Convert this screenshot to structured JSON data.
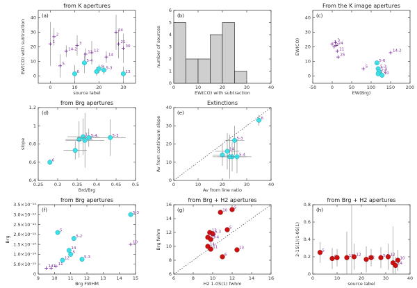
{
  "chart_data": [
    {
      "id": "a",
      "type": "scatter",
      "title": "from K apertures",
      "panel_label": "(a)",
      "xlabel": "source label",
      "ylabel": "EW(CO) with subtraction",
      "xlim": [
        -5,
        35
      ],
      "ylim": [
        -5,
        45
      ],
      "xticks": [
        0,
        10,
        20,
        30
      ],
      "yticks": [
        0,
        10,
        20,
        30,
        40
      ],
      "marker": "cross-purple",
      "points": [
        {
          "x": 0,
          "y": 22,
          "ex": 0.5,
          "ey": 15,
          "label": "1"
        },
        {
          "x": 1.5,
          "y": 27,
          "ex": 0.5,
          "ey": 6,
          "label": "2"
        },
        {
          "x": 6.5,
          "y": 17,
          "ex": 0.5,
          "ey": 4,
          "label": "14-2"
        },
        {
          "x": 11,
          "y": 21,
          "ex": 0.5,
          "ey": 7,
          "label": "3"
        },
        {
          "x": 14.5,
          "y": 15,
          "ex": 0.5,
          "ey": 4,
          "label": "11"
        },
        {
          "x": 17,
          "y": 16,
          "ex": 0.5,
          "ey": 8,
          "label": "12"
        },
        {
          "x": 4,
          "y": 7,
          "ex": 0.5,
          "ey": 8,
          "label": "5"
        },
        {
          "x": 10,
          "y": 1.5,
          "ex": 0.5,
          "ey": 6,
          "label": "6"
        },
        {
          "x": 14,
          "y": 9,
          "ex": 0.5,
          "ey": 7,
          "label": "5-4"
        },
        {
          "x": 19,
          "y": 3,
          "ex": 0.5,
          "ey": 3,
          "label": "8"
        },
        {
          "x": 20,
          "y": 5,
          "ex": 0.5,
          "ey": 3,
          "label": "9"
        },
        {
          "x": 22,
          "y": 4,
          "ex": 0.5,
          "ey": 3,
          "label": "5-3"
        },
        {
          "x": 27,
          "y": 30,
          "ex": 0.5,
          "ey": 12,
          "label": "24"
        },
        {
          "x": 28,
          "y": 22,
          "ex": 0.5,
          "ey": 10,
          "label": "21"
        },
        {
          "x": 30,
          "y": 19,
          "ex": 0.5,
          "ey": 10,
          "label": "30"
        },
        {
          "x": 23,
          "y": 13,
          "ex": 0.5,
          "ey": 4,
          "label": "14"
        },
        {
          "x": 30,
          "y": 1.5,
          "ex": 0.5,
          "ey": 5,
          "label": "13"
        }
      ],
      "highlighted": [
        {
          "x": 10,
          "y": 1.5
        },
        {
          "x": 14,
          "y": 9
        },
        {
          "x": 19,
          "y": 3
        },
        {
          "x": 20,
          "y": 5
        },
        {
          "x": 22,
          "y": 4
        },
        {
          "x": 30,
          "y": 1.5
        }
      ]
    },
    {
      "id": "b",
      "type": "bar",
      "title": "",
      "panel_label": "(b)",
      "xlabel": "EW(CO) with subtraction",
      "ylabel": "number of sources",
      "xlim": [
        0,
        40
      ],
      "ylim": [
        0,
        6
      ],
      "xticks": [
        0,
        10,
        20,
        30,
        40
      ],
      "yticks": [
        0,
        1,
        2,
        3,
        4,
        5,
        6
      ],
      "bin_edges": [
        0,
        5,
        10,
        15,
        20,
        25,
        30,
        35
      ],
      "values": [
        5,
        2,
        2,
        4,
        5,
        1,
        0
      ]
    },
    {
      "id": "c",
      "type": "scatter",
      "title": "From the K image apertures",
      "panel_label": "(c)",
      "xlabel": "EW(Brg)",
      "ylabel": "EW(CO)",
      "xlim": [
        -50,
        200
      ],
      "ylim": [
        -5,
        45
      ],
      "xticks": [
        -50,
        0,
        50,
        100,
        150,
        200
      ],
      "yticks": [
        0,
        10,
        20,
        30,
        40
      ],
      "marker": "cross-purple",
      "points": [
        {
          "x": 0,
          "y": 22,
          "label": "1"
        },
        {
          "x": 5,
          "y": 20,
          "label": "2"
        },
        {
          "x": 8,
          "y": 23,
          "label": "3"
        },
        {
          "x": 10,
          "y": 21,
          "label": "24"
        },
        {
          "x": 13,
          "y": 17,
          "label": "21"
        },
        {
          "x": 15,
          "y": 13,
          "label": "25"
        },
        {
          "x": 150,
          "y": 16,
          "label": "14-2"
        },
        {
          "x": 80,
          "y": 5,
          "label": "5"
        },
        {
          "x": 115,
          "y": 9,
          "label": "5-6"
        },
        {
          "x": 118,
          "y": 5,
          "label": "5-3"
        },
        {
          "x": 120,
          "y": 3,
          "label": "5-4"
        },
        {
          "x": 118,
          "y": 1.5,
          "label": "5-2"
        },
        {
          "x": 128,
          "y": 0.5,
          "label": "10"
        }
      ],
      "highlighted": [
        {
          "x": 115,
          "y": 9
        },
        {
          "x": 118,
          "y": 5
        },
        {
          "x": 120,
          "y": 3
        },
        {
          "x": 118,
          "y": 1.5
        },
        {
          "x": 128,
          "y": 0.5
        }
      ]
    },
    {
      "id": "d",
      "type": "scatter",
      "title": "from Brg apertures",
      "panel_label": "(d)",
      "xlabel": "Brd/Brg",
      "ylabel": "slope",
      "xlim": [
        0.25,
        0.5
      ],
      "ylim": [
        0.4,
        1.2
      ],
      "xticks": [
        0.25,
        0.3,
        0.35,
        0.4,
        0.45,
        0.5
      ],
      "yticks": [
        0.4,
        0.6,
        0.8,
        1.0,
        1.2
      ],
      "marker": "cyan-dot",
      "points": [
        {
          "x": 0.28,
          "y": 0.6,
          "ex": 0.005,
          "ey": 0.03,
          "label": "6"
        },
        {
          "x": 0.345,
          "y": 0.73,
          "ex": 0.03,
          "ey": 0.1,
          "label": ""
        },
        {
          "x": 0.355,
          "y": 0.85,
          "ex": 0.035,
          "ey": 0.2,
          "label": "12"
        },
        {
          "x": 0.365,
          "y": 0.88,
          "ex": 0.04,
          "ey": 0.2,
          "label": "11"
        },
        {
          "x": 0.37,
          "y": 0.84,
          "ex": 0.05,
          "ey": 0.3,
          "label": "14"
        },
        {
          "x": 0.38,
          "y": 0.87,
          "ex": 0.03,
          "ey": 0.1,
          "label": "5-4"
        },
        {
          "x": 0.435,
          "y": 0.87,
          "ex": 0.04,
          "ey": 0.2,
          "label": "5-3"
        }
      ]
    },
    {
      "id": "e",
      "type": "scatter",
      "title": "Extinctions",
      "panel_label": "(e)",
      "xlabel": "Av from line ratio",
      "ylabel": "Av from continuum slope",
      "xlim": [
        0,
        40
      ],
      "ylim": [
        0,
        40
      ],
      "xticks": [
        0,
        10,
        20,
        30,
        40
      ],
      "yticks": [
        0,
        10,
        20,
        30,
        40
      ],
      "marker": "cyan-dot",
      "reference_line": "y = x (dotted)",
      "points": [
        {
          "x": 35,
          "y": 33,
          "ex": 1,
          "ey": 3,
          "label": "6"
        },
        {
          "x": 25,
          "y": 22,
          "ex": 4,
          "ey": 8,
          "label": "5-3"
        },
        {
          "x": 22,
          "y": 16,
          "ex": 5,
          "ey": 10,
          "label": "14"
        },
        {
          "x": 24,
          "y": 13,
          "ex": 6,
          "ey": 8,
          "label": ""
        },
        {
          "x": 20,
          "y": 14,
          "ex": 4,
          "ey": 6,
          "label": ""
        },
        {
          "x": 23,
          "y": 13,
          "ex": 7,
          "ey": 12,
          "label": ""
        },
        {
          "x": 26,
          "y": 13,
          "ex": 6,
          "ey": 9,
          "label": "5-4"
        }
      ]
    },
    {
      "id": "f",
      "type": "scatter",
      "title": "from Brg apertures",
      "panel_label": "(f)",
      "xlabel": "Brg FWHM",
      "ylabel": "Brg",
      "xlim": [
        9,
        15
      ],
      "ylim": [
        0,
        3.5e-14
      ],
      "xticks": [
        9,
        10,
        11,
        12,
        13,
        14,
        15
      ],
      "yticks": [
        0,
        5e-15,
        1e-14,
        1.5e-14,
        2e-14,
        2.5e-14,
        3e-14,
        3.5e-14
      ],
      "ytick_labels": [
        "0",
        "5.0×10⁻¹⁵",
        "1.0×10⁻¹⁴",
        "1.5×10⁻¹⁴",
        "2.0×10⁻¹⁴",
        "2.5×10⁻¹⁴",
        "3.0×10⁻¹⁴",
        "3.5×10⁻¹⁴"
      ],
      "marker": "cyan-dot",
      "points": [
        {
          "x": 14.7,
          "y": 3e-14,
          "label": "5-3",
          "hl": true
        },
        {
          "x": 10.2,
          "y": 2.1e-14,
          "label": "5",
          "hl": true
        },
        {
          "x": 11.2,
          "y": 1.8e-14,
          "label": "5-2",
          "hl": true
        },
        {
          "x": 14.7,
          "y": 1.5e-14,
          "label": "10",
          "hl": false
        },
        {
          "x": 10.9,
          "y": 1.2e-14,
          "label": "14",
          "hl": true
        },
        {
          "x": 11.0,
          "y": 1e-14,
          "label": "5",
          "hl": true
        },
        {
          "x": 11.7,
          "y": 7.5e-15,
          "label": "5-3",
          "hl": true
        },
        {
          "x": 10.5,
          "y": 7e-15,
          "label": "12",
          "hl": true
        },
        {
          "x": 9.5,
          "y": 3e-15,
          "label": "14",
          "hl": false
        },
        {
          "x": 9.8,
          "y": 3e-15,
          "label": "1",
          "hl": false
        },
        {
          "x": 10.1,
          "y": 4e-15,
          "label": "11",
          "hl": false
        }
      ]
    },
    {
      "id": "g",
      "type": "scatter",
      "title": "from Brg + H2 apertures",
      "panel_label": "(g)",
      "xlabel": "H2 1-0S(1) fwhm",
      "ylabel": "Brg fwhm",
      "xlim": [
        6,
        16
      ],
      "ylim": [
        6,
        16
      ],
      "xticks": [
        6,
        8,
        10,
        12,
        14,
        16
      ],
      "yticks": [
        6,
        8,
        10,
        12,
        14,
        16
      ],
      "marker": "red-dot",
      "reference_line": "y = x (dotted)",
      "points": [
        {
          "x": 12,
          "y": 15.3,
          "label": "5"
        },
        {
          "x": 9.7,
          "y": 12,
          "label": "12"
        },
        {
          "x": 10,
          "y": 11.8,
          "label": "5-3"
        },
        {
          "x": 9.5,
          "y": 11.3,
          "label": "5-2"
        },
        {
          "x": 9.8,
          "y": 11.0,
          "label": "5-4"
        },
        {
          "x": 11.5,
          "y": 12.4,
          "label": "5"
        },
        {
          "x": 9.5,
          "y": 10,
          "label": "14"
        },
        {
          "x": 9.8,
          "y": 9.6,
          "label": "11"
        },
        {
          "x": 11,
          "y": 8.5,
          "label": "6"
        },
        {
          "x": 10.8,
          "y": 14.9,
          "label": "10"
        },
        {
          "x": 12.5,
          "y": 9.5,
          "label": "13"
        }
      ]
    },
    {
      "id": "h",
      "type": "scatter",
      "title": "from Brg + H2 apertures",
      "panel_label": "(h)",
      "xlabel": "source label",
      "ylabel": "2-1S(1)/1-0S(1)",
      "xlim": [
        0,
        40
      ],
      "ylim": [
        0,
        0.8
      ],
      "xticks": [
        0,
        10,
        20,
        30,
        40
      ],
      "yticks": [
        0,
        0.2,
        0.4,
        0.6,
        0.8
      ],
      "marker": "red-dot",
      "points": [
        {
          "x": 3,
          "y": 0.25,
          "ey": 0.12,
          "label": "5"
        },
        {
          "x": 8,
          "y": 0.18,
          "ey": 0.12,
          "label": "6"
        },
        {
          "x": 10,
          "y": 0.19,
          "ey": 0.1,
          "label": ""
        },
        {
          "x": 14,
          "y": 0.19,
          "ey": 0.3,
          "label": "11"
        },
        {
          "x": 17,
          "y": 0.2,
          "ey": 0.15,
          "label": "12"
        },
        {
          "x": 22,
          "y": 0.17,
          "ey": 0.15,
          "label": "5-2"
        },
        {
          "x": 24,
          "y": 0.19,
          "ey": 0.1,
          "label": ""
        },
        {
          "x": 28,
          "y": 0.19,
          "ey": 0.12,
          "label": "5-3"
        },
        {
          "x": 31,
          "y": 0.2,
          "ey": 0.15,
          "label": "12"
        },
        {
          "x": 33,
          "y": 0.13,
          "ey": 0.12,
          "label": "13"
        },
        {
          "x": 34,
          "y": 0.1,
          "ey": 0.1,
          "label": "14"
        },
        {
          "x": 35,
          "y": 0.16,
          "ey": 0.12,
          "label": "10"
        }
      ],
      "extra_errorbars": [
        {
          "x": 16,
          "ylo": 0.0,
          "yhi": 0.8
        },
        {
          "x": 33,
          "ylo": 0.0,
          "yhi": 0.55
        }
      ]
    }
  ]
}
